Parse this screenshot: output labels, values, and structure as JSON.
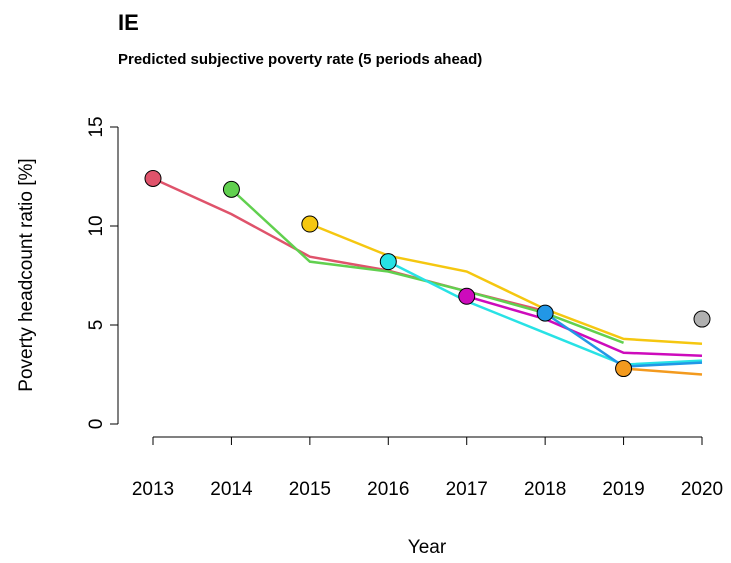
{
  "chart_data": {
    "type": "line",
    "title": "IE",
    "subtitle": "Predicted subjective poverty rate (5 periods ahead)",
    "x_label": "Year",
    "y_label": "Poverty headcount ratio [%]",
    "x": [
      2013,
      2014,
      2015,
      2016,
      2017,
      2018,
      2019,
      2020
    ],
    "xlim": [
      2013,
      2020
    ],
    "xticks": [
      2013,
      2014,
      2015,
      2016,
      2017,
      2018,
      2019,
      2020
    ],
    "ylim": [
      0,
      15
    ],
    "yticks": [
      0,
      5,
      10,
      15
    ],
    "series": [
      {
        "color": "#DF536B",
        "values": [
          12.4,
          10.6,
          8.45,
          7.75,
          6.7,
          5.7,
          null,
          null
        ]
      },
      {
        "color": "#61D04F",
        "values": [
          null,
          11.85,
          8.2,
          7.7,
          6.7,
          5.6,
          4.1,
          null
        ]
      },
      {
        "color": "#F5C710",
        "values": [
          null,
          null,
          10.1,
          8.5,
          7.7,
          5.8,
          4.3,
          4.05
        ]
      },
      {
        "color": "#28E2E5",
        "values": [
          null,
          null,
          null,
          8.2,
          6.2,
          4.6,
          3.0,
          3.2
        ]
      },
      {
        "color": "#CD0BBC",
        "values": [
          null,
          null,
          null,
          null,
          6.45,
          5.3,
          3.6,
          3.45
        ]
      },
      {
        "color": "#2297E6",
        "values": [
          null,
          null,
          null,
          null,
          null,
          5.6,
          2.9,
          3.1
        ]
      },
      {
        "color": "#F39A1E",
        "values": [
          null,
          null,
          null,
          null,
          null,
          null,
          2.8,
          2.5
        ]
      },
      {
        "color": "#B0B0B0",
        "values": [
          null,
          null,
          null,
          null,
          null,
          null,
          null,
          5.3
        ]
      }
    ]
  }
}
